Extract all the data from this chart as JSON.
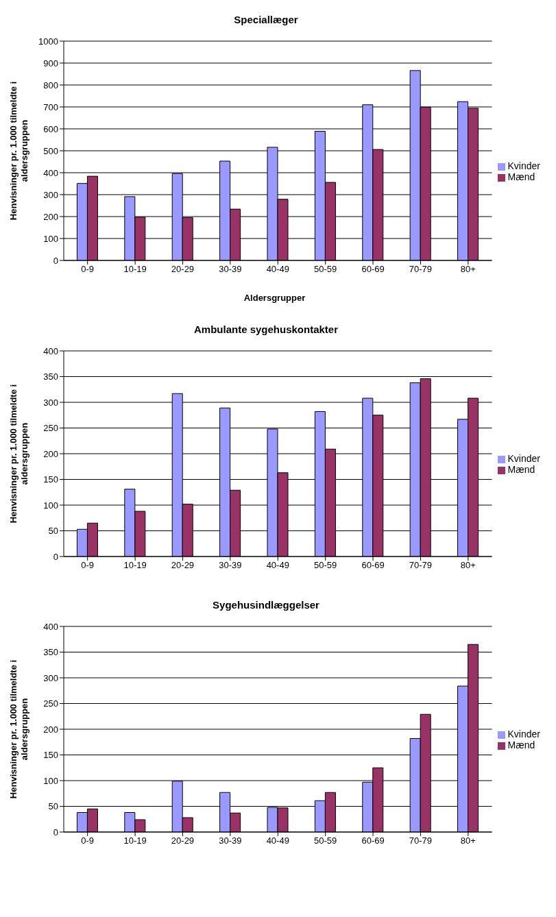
{
  "chart_data": [
    {
      "type": "bar",
      "title": "Speciallæger",
      "xlabel": "Aldersgrupper",
      "ylabel": "Henvisninger pr. 1.000 tilmeldte i aldersgruppen",
      "categories": [
        "0-9",
        "10-19",
        "20-29",
        "30-39",
        "40-49",
        "50-59",
        "60-69",
        "70-79",
        "80+"
      ],
      "series": [
        {
          "name": "Kvinder",
          "color": "#9999ff",
          "values": [
            351,
            291,
            396,
            453,
            516,
            589,
            710,
            866,
            724
          ]
        },
        {
          "name": "Mænd",
          "color": "#993366",
          "values": [
            384,
            197,
            195,
            234,
            279,
            356,
            506,
            699,
            694
          ]
        }
      ],
      "ylim": [
        0,
        1000
      ],
      "yticks": [
        0,
        100,
        200,
        300,
        400,
        500,
        600,
        700,
        800,
        900,
        1000
      ],
      "grid": "y",
      "legend": "right"
    },
    {
      "type": "bar",
      "title": "Ambulante sygehuskontakter",
      "ylabel": "Henvisninger pr. 1.000 tilmeldte i aldersgruppen",
      "categories": [
        "0-9",
        "10-19",
        "20-29",
        "30-39",
        "40-49",
        "50-59",
        "60-69",
        "70-79",
        "80+"
      ],
      "series": [
        {
          "name": "Kvinder",
          "color": "#9999ff",
          "values": [
            53,
            131,
            317,
            289,
            248,
            282,
            308,
            338,
            267
          ]
        },
        {
          "name": "Mænd",
          "color": "#993366",
          "values": [
            65,
            88,
            102,
            129,
            163,
            209,
            275,
            346,
            308
          ]
        }
      ],
      "ylim": [
        0,
        400
      ],
      "yticks": [
        0,
        50,
        100,
        150,
        200,
        250,
        300,
        350,
        400
      ],
      "grid": "y",
      "legend": "right"
    },
    {
      "type": "bar",
      "title": "Sygehusindlæggelser",
      "ylabel": "Henvisninger pr. 1.000 tilmeldte i aldersgruppen",
      "categories": [
        "0-9",
        "10-19",
        "20-29",
        "30-39",
        "40-49",
        "50-59",
        "60-69",
        "70-79",
        "80+"
      ],
      "series": [
        {
          "name": "Kvinder",
          "color": "#9999ff",
          "values": [
            38,
            38,
            99,
            77,
            48,
            61,
            97,
            182,
            284
          ]
        },
        {
          "name": "Mænd",
          "color": "#993366",
          "values": [
            45,
            24,
            28,
            37,
            47,
            77,
            125,
            229,
            365
          ]
        }
      ],
      "ylim": [
        0,
        400
      ],
      "yticks": [
        0,
        50,
        100,
        150,
        200,
        250,
        300,
        350,
        400
      ],
      "grid": "y",
      "legend": "right"
    }
  ]
}
